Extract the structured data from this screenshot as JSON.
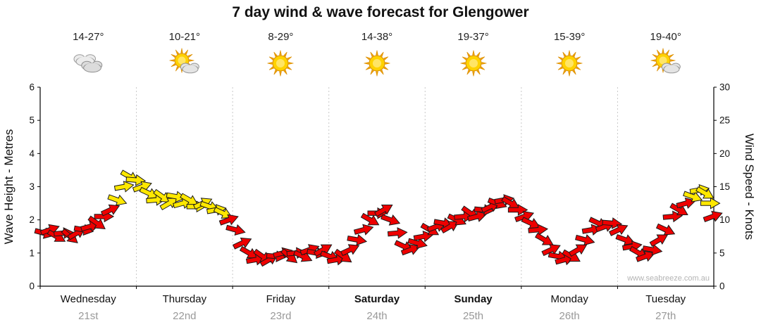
{
  "title": "7 day wind & wave forecast for Glengower",
  "watermark": "www.seabreeze.com.au",
  "axes": {
    "left_label": "Wave Height - Metres",
    "right_label": "Wind Speed - Knots",
    "left_ticks": [
      0,
      1,
      2,
      3,
      4,
      5,
      6
    ],
    "right_ticks": [
      0,
      5,
      10,
      15,
      20,
      25,
      30
    ]
  },
  "days": [
    {
      "name": "Wednesday",
      "date": "21st",
      "temp": "14-27°",
      "icon": "cloudy",
      "bold": false
    },
    {
      "name": "Thursday",
      "date": "22nd",
      "temp": "10-21°",
      "icon": "partly-sunny",
      "bold": false
    },
    {
      "name": "Friday",
      "date": "23rd",
      "temp": "8-29°",
      "icon": "sunny",
      "bold": false
    },
    {
      "name": "Saturday",
      "date": "24th",
      "temp": "14-38°",
      "icon": "sunny",
      "bold": true
    },
    {
      "name": "Sunday",
      "date": "25th",
      "temp": "19-37°",
      "icon": "sunny",
      "bold": true
    },
    {
      "name": "Monday",
      "date": "26th",
      "temp": "15-39°",
      "icon": "sunny",
      "bold": false
    },
    {
      "name": "Tuesday",
      "date": "27th",
      "temp": "19-40°",
      "icon": "partly-sunny",
      "bold": false
    }
  ],
  "chart_data": {
    "type": "wind-arrow-series",
    "title": "7 day wind & wave forecast for Glengower",
    "x_axis": {
      "categories": [
        "Wednesday 21st",
        "Thursday 22nd",
        "Friday 23rd",
        "Saturday 24th",
        "Sunday 25th",
        "Monday 26th",
        "Tuesday 27th"
      ],
      "unit": "day_fraction 0..7"
    },
    "y_axis_left": {
      "label": "Wave Height - Metres",
      "range": [
        0,
        6
      ]
    },
    "y_axis_right": {
      "label": "Wind Speed - Knots",
      "range": [
        0,
        30
      ]
    },
    "arrow_colors": {
      "r": "#ee0000",
      "y": "#ffe800"
    },
    "point_format": [
      "day_fraction",
      "wind_knots",
      "direction_deg",
      "color"
    ],
    "points": [
      [
        0.04,
        8.0,
        15,
        "r"
      ],
      [
        0.1,
        8.5,
        -20,
        "r"
      ],
      [
        0.17,
        7.5,
        30,
        "r"
      ],
      [
        0.24,
        8.0,
        -5,
        "r"
      ],
      [
        0.31,
        7.5,
        40,
        "r"
      ],
      [
        0.38,
        8.0,
        -30,
        "r"
      ],
      [
        0.45,
        8.5,
        10,
        "r"
      ],
      [
        0.52,
        9.0,
        -15,
        "r"
      ],
      [
        0.59,
        9.5,
        35,
        "r"
      ],
      [
        0.66,
        10.5,
        0,
        "r"
      ],
      [
        0.73,
        11.5,
        -25,
        "r"
      ],
      [
        0.8,
        13.0,
        20,
        "y"
      ],
      [
        0.87,
        15.0,
        -10,
        "y"
      ],
      [
        0.93,
        16.5,
        30,
        "y"
      ],
      [
        0.99,
        16.0,
        5,
        "y"
      ],
      [
        1.06,
        15.0,
        -20,
        "y"
      ],
      [
        1.13,
        14.0,
        25,
        "y"
      ],
      [
        1.2,
        13.0,
        -5,
        "y"
      ],
      [
        1.27,
        13.5,
        35,
        "y"
      ],
      [
        1.34,
        12.5,
        -30,
        "y"
      ],
      [
        1.41,
        13.5,
        10,
        "y"
      ],
      [
        1.48,
        12.5,
        -15,
        "y"
      ],
      [
        1.55,
        13.0,
        30,
        "y"
      ],
      [
        1.62,
        12.0,
        0,
        "y"
      ],
      [
        1.69,
        12.5,
        -25,
        "y"
      ],
      [
        1.76,
        12.0,
        20,
        "y"
      ],
      [
        1.83,
        11.5,
        -10,
        "y"
      ],
      [
        1.9,
        11.0,
        25,
        "y"
      ],
      [
        1.96,
        10.0,
        -20,
        "r"
      ],
      [
        2.03,
        8.5,
        15,
        "r"
      ],
      [
        2.1,
        6.5,
        -25,
        "r"
      ],
      [
        2.17,
        5.0,
        30,
        "r"
      ],
      [
        2.24,
        4.0,
        -10,
        "r"
      ],
      [
        2.31,
        4.5,
        35,
        "r"
      ],
      [
        2.38,
        4.0,
        -30,
        "r"
      ],
      [
        2.45,
        4.5,
        5,
        "r"
      ],
      [
        2.52,
        5.0,
        -15,
        "r"
      ],
      [
        2.59,
        4.5,
        40,
        "r"
      ],
      [
        2.66,
        5.0,
        -5,
        "r"
      ],
      [
        2.73,
        4.5,
        25,
        "r"
      ],
      [
        2.8,
        5.5,
        -20,
        "r"
      ],
      [
        2.87,
        5.0,
        10,
        "r"
      ],
      [
        2.94,
        5.5,
        -30,
        "r"
      ],
      [
        3.01,
        4.5,
        20,
        "r"
      ],
      [
        3.08,
        4.0,
        -10,
        "r"
      ],
      [
        3.15,
        4.5,
        35,
        "r"
      ],
      [
        3.22,
        5.5,
        -25,
        "r"
      ],
      [
        3.29,
        7.0,
        10,
        "r"
      ],
      [
        3.36,
        8.5,
        -15,
        "r"
      ],
      [
        3.43,
        10.0,
        30,
        "r"
      ],
      [
        3.5,
        11.0,
        0,
        "r"
      ],
      [
        3.57,
        11.5,
        -30,
        "r"
      ],
      [
        3.64,
        10.0,
        20,
        "r"
      ],
      [
        3.71,
        8.0,
        -5,
        "r"
      ],
      [
        3.78,
        6.0,
        25,
        "r"
      ],
      [
        3.85,
        5.5,
        -20,
        "r"
      ],
      [
        3.92,
        6.5,
        15,
        "r"
      ],
      [
        3.98,
        7.5,
        -10,
        "r"
      ],
      [
        4.05,
        8.5,
        30,
        "r"
      ],
      [
        4.12,
        9.0,
        -20,
        "r"
      ],
      [
        4.19,
        9.5,
        10,
        "r"
      ],
      [
        4.26,
        9.0,
        -30,
        "r"
      ],
      [
        4.33,
        10.0,
        25,
        "r"
      ],
      [
        4.4,
        10.5,
        -5,
        "r"
      ],
      [
        4.47,
        11.0,
        35,
        "r"
      ],
      [
        4.54,
        10.5,
        -15,
        "r"
      ],
      [
        4.61,
        11.5,
        5,
        "r"
      ],
      [
        4.68,
        12.0,
        -25,
        "r"
      ],
      [
        4.75,
        12.5,
        20,
        "r"
      ],
      [
        4.82,
        13.0,
        -10,
        "r"
      ],
      [
        4.89,
        12.5,
        30,
        "r"
      ],
      [
        4.96,
        11.5,
        0,
        "r"
      ],
      [
        5.03,
        10.5,
        -20,
        "r"
      ],
      [
        5.1,
        9.5,
        25,
        "r"
      ],
      [
        5.17,
        8.5,
        -5,
        "r"
      ],
      [
        5.24,
        7.0,
        30,
        "r"
      ],
      [
        5.31,
        5.5,
        -25,
        "r"
      ],
      [
        5.38,
        4.5,
        10,
        "r"
      ],
      [
        5.45,
        4.0,
        -15,
        "r"
      ],
      [
        5.52,
        4.5,
        30,
        "r"
      ],
      [
        5.59,
        5.5,
        -30,
        "r"
      ],
      [
        5.66,
        7.0,
        15,
        "r"
      ],
      [
        5.73,
        8.5,
        -10,
        "r"
      ],
      [
        5.8,
        9.5,
        25,
        "r"
      ],
      [
        5.87,
        9.0,
        -20,
        "r"
      ],
      [
        5.94,
        9.5,
        5,
        "r"
      ],
      [
        6.01,
        8.5,
        -25,
        "r"
      ],
      [
        6.08,
        7.0,
        20,
        "r"
      ],
      [
        6.15,
        6.0,
        -10,
        "r"
      ],
      [
        6.22,
        5.0,
        30,
        "r"
      ],
      [
        6.29,
        4.5,
        -20,
        "r"
      ],
      [
        6.36,
        5.5,
        10,
        "r"
      ],
      [
        6.43,
        7.0,
        -30,
        "r"
      ],
      [
        6.5,
        8.5,
        25,
        "r"
      ],
      [
        6.57,
        10.5,
        -5,
        "r"
      ],
      [
        6.64,
        11.5,
        30,
        "r"
      ],
      [
        6.71,
        12.5,
        -15,
        "r"
      ],
      [
        6.78,
        13.5,
        20,
        "y"
      ],
      [
        6.85,
        14.5,
        -10,
        "y"
      ],
      [
        6.91,
        14.0,
        30,
        "y"
      ],
      [
        6.96,
        12.5,
        0,
        "y"
      ],
      [
        6.99,
        10.5,
        -20,
        "r"
      ]
    ]
  }
}
